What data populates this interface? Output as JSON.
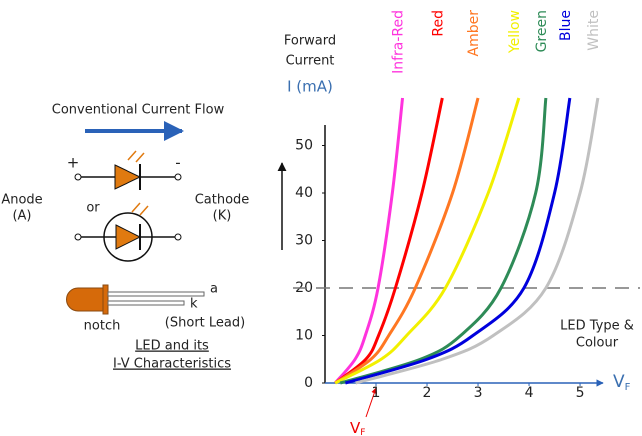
{
  "diagram": {
    "flow_label": "Conventional Current Flow",
    "plus": "+",
    "minus": "-",
    "anode": [
      "Anode",
      "(A)"
    ],
    "or": "or",
    "cathode": [
      "Cathode",
      "(K)"
    ],
    "lead_a": "a",
    "lead_k": "k",
    "notch": "notch",
    "short_lead": "(Short Lead)",
    "caption": [
      "LED and its",
      "I-V Characteristics"
    ]
  },
  "chart_data": {
    "type": "line",
    "y_label": [
      "Forward",
      "Current"
    ],
    "y_unit": "I (mA)",
    "x_label": {
      "main": "V",
      "sub": "F"
    },
    "annotation": {
      "main": "V",
      "sub": "F"
    },
    "legend_title": [
      "LED Type &",
      "Colour"
    ],
    "xlim": [
      0,
      5.45
    ],
    "ylim": [
      0,
      60
    ],
    "xticks": [
      1,
      2,
      3,
      4,
      5
    ],
    "yticks": [
      0,
      10,
      20,
      30,
      40,
      50
    ],
    "reference_line": 20,
    "reference_color": "#777777",
    "series": [
      {
        "name": "Infra-Red",
        "color": "#ff33dd",
        "x": [
          0.2,
          0.59,
          0.79,
          1.04,
          1.32,
          1.52
        ],
        "values": [
          0,
          5,
          10,
          20,
          40,
          60
        ]
      },
      {
        "name": "Red",
        "color": "#ff0000",
        "x": [
          0.2,
          0.8,
          1.05,
          1.38,
          1.9,
          2.3
        ],
        "values": [
          0,
          5,
          10,
          20,
          40,
          60
        ]
      },
      {
        "name": "Amber",
        "color": "#ff7722",
        "x": [
          0.2,
          0.9,
          1.25,
          1.77,
          2.5,
          3.0
        ],
        "values": [
          0,
          5,
          10,
          20,
          40,
          60
        ]
      },
      {
        "name": "Yellow",
        "color": "#f2f000",
        "x": [
          0.2,
          1.1,
          1.6,
          2.36,
          3.2,
          3.8
        ],
        "values": [
          0,
          5,
          10,
          20,
          40,
          60
        ]
      },
      {
        "name": "Green",
        "color": "#2e8b57",
        "x": [
          0.3,
          1.87,
          2.66,
          3.45,
          4.13,
          4.33
        ],
        "values": [
          0,
          5,
          10,
          20,
          40,
          60
        ]
      },
      {
        "name": "Blue",
        "color": "#0000dd",
        "x": [
          0.4,
          2.0,
          2.9,
          3.9,
          4.5,
          4.8
        ],
        "values": [
          0,
          5,
          10,
          20,
          40,
          60
        ]
      },
      {
        "name": "White",
        "color": "#c0c0c0",
        "x": [
          0.6,
          2.3,
          3.3,
          4.33,
          5.0,
          5.35
        ],
        "values": [
          0,
          5,
          10,
          20,
          40,
          60
        ]
      }
    ]
  }
}
